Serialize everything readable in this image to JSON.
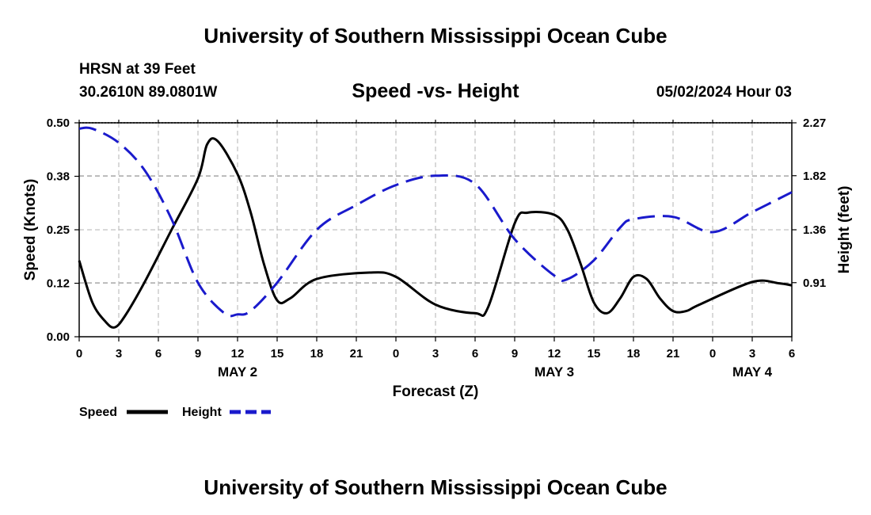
{
  "header": {
    "title": "University of Southern Mississippi Ocean Cube",
    "station": "HRSN at 39 Feet",
    "coords": "30.2610N  89.0801W",
    "subtitle": "Speed -vs- Height",
    "datetime": "05/02/2024 Hour 03"
  },
  "footer": {
    "title": "University of Southern Mississippi Ocean Cube"
  },
  "chart_data": {
    "type": "line",
    "xlabel": "Forecast (Z)",
    "ylabel": "Speed (Knots)",
    "y2label": "Height (feet)",
    "x_hours": {
      "start": 0,
      "end": 54,
      "step": 3
    },
    "x_tick_labels": [
      "0",
      "3",
      "6",
      "9",
      "12",
      "15",
      "18",
      "21",
      "0",
      "3",
      "6",
      "9",
      "12",
      "15",
      "18",
      "21",
      "0",
      "3",
      "6"
    ],
    "date_labels": [
      {
        "label": "MAY 2",
        "hour": 12
      },
      {
        "label": "MAY 3",
        "hour": 36
      },
      {
        "label": "MAY 4",
        "hour": 51
      }
    ],
    "ylim": [
      0,
      0.5
    ],
    "y_ticks": [
      0,
      0.125,
      0.25,
      0.375,
      0.5
    ],
    "y_tick_labels": [
      "0.00",
      "0.12",
      "0.25",
      "0.38",
      "0.50"
    ],
    "y2lim": [
      0.45,
      2.27
    ],
    "y2_ticks": [
      0.91,
      1.36,
      1.82,
      2.27
    ],
    "y2_tick_labels": [
      "0.91",
      "1.36",
      "1.82",
      "2.27"
    ],
    "grid": true,
    "legend": {
      "placement": "bottom-left",
      "entries": [
        "Speed",
        "Height"
      ]
    },
    "series": [
      {
        "name": "Speed",
        "axis": "left",
        "color": "#000000",
        "dash": "solid",
        "x": [
          0,
          1,
          2,
          2.7,
          3.5,
          5,
          7,
          9,
          9.7,
          10.5,
          12,
          13,
          14,
          15,
          16,
          18,
          22,
          24,
          27,
          30,
          31,
          33,
          34,
          36,
          37,
          38,
          39,
          40,
          41,
          42,
          43,
          44,
          45,
          46,
          47,
          51,
          53,
          54
        ],
        "values": [
          0.178,
          0.08,
          0.035,
          0.022,
          0.05,
          0.13,
          0.25,
          0.37,
          0.45,
          0.457,
          0.38,
          0.29,
          0.17,
          0.085,
          0.09,
          0.135,
          0.15,
          0.14,
          0.075,
          0.055,
          0.07,
          0.265,
          0.29,
          0.285,
          0.25,
          0.17,
          0.08,
          0.055,
          0.09,
          0.14,
          0.135,
          0.09,
          0.06,
          0.06,
          0.075,
          0.128,
          0.125,
          0.12
        ]
      },
      {
        "name": "Height",
        "axis": "right",
        "color": "#1a1acc",
        "dash": "dashed",
        "x": [
          0,
          1,
          3,
          5,
          7,
          9,
          11,
          12,
          13,
          15,
          18,
          21,
          24,
          27,
          30,
          33,
          36,
          37,
          39,
          41,
          42,
          45,
          48,
          51,
          54
        ],
        "values": [
          2.22,
          2.22,
          2.1,
          1.86,
          1.45,
          0.91,
          0.65,
          0.64,
          0.67,
          0.91,
          1.36,
          1.57,
          1.74,
          1.82,
          1.75,
          1.28,
          0.97,
          0.94,
          1.1,
          1.38,
          1.45,
          1.47,
          1.34,
          1.51,
          1.68
        ]
      }
    ]
  }
}
